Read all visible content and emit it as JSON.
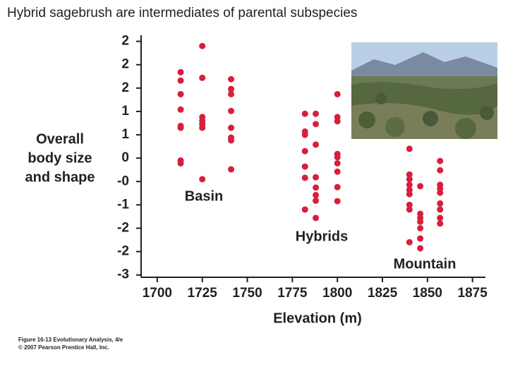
{
  "chart_data": {
    "type": "scatter",
    "title": "Hybrid sagebrush are intermediates of parental subspecies",
    "y_label": [
      "Overall",
      "body size",
      "and shape"
    ],
    "x_label": "Elevation (m)",
    "annotations": [
      "Basin",
      "Hybrids",
      "Mountain"
    ],
    "credit": [
      "Figure 16-13 Evolutionary Analysis, 4/e",
      "© 2007 Pearson Prentice Hall, Inc."
    ],
    "color": "#d81e3c",
    "x": [
      1713,
      1713,
      1713,
      1713,
      1713,
      1713,
      1713,
      1713,
      1725,
      1725,
      1725,
      1725,
      1725,
      1725,
      1725,
      1741,
      1741,
      1741,
      1741,
      1741,
      1741,
      1741,
      1741,
      1782,
      1782,
      1782,
      1782,
      1782,
      1782,
      1782,
      1788,
      1788,
      1788,
      1788,
      1788,
      1788,
      1788,
      1788,
      1800,
      1800,
      1800,
      1800,
      1800,
      1800,
      1800,
      1800,
      1800,
      1840,
      1840,
      1840,
      1840,
      1840,
      1840,
      1840,
      1840,
      1840,
      1846,
      1846,
      1846,
      1846,
      1846,
      1846,
      1846,
      1857,
      1857,
      1857,
      1857,
      1857,
      1857,
      1857,
      1857,
      1857
    ],
    "values": [
      1.84,
      1.66,
      1.37,
      1.04,
      0.69,
      0.65,
      -0.05,
      -0.11,
      2.4,
      1.72,
      0.88,
      0.8,
      0.73,
      0.65,
      -0.45,
      1.69,
      1.48,
      1.37,
      1.01,
      0.65,
      0.44,
      0.38,
      -0.24,
      0.95,
      0.57,
      0.5,
      0.15,
      -0.18,
      -0.42,
      -1.1,
      0.95,
      0.73,
      0.29,
      -0.41,
      -0.63,
      -0.79,
      -0.91,
      -1.28,
      1.37,
      0.88,
      0.79,
      0.09,
      0.02,
      -0.11,
      -0.29,
      -0.62,
      -0.92,
      0.2,
      -0.35,
      -0.45,
      -0.57,
      -0.68,
      -0.77,
      -1.0,
      -1.1,
      -1.8,
      -0.6,
      -1.19,
      -1.28,
      -1.36,
      -1.5,
      -1.72,
      -1.93,
      -0.06,
      -0.26,
      -0.57,
      -0.65,
      -0.74,
      -0.97,
      -1.1,
      -1.28,
      -1.4
    ],
    "xlim": [
      1693,
      1881
    ],
    "xticks": [
      1700,
      1725,
      1750,
      1775,
      1800,
      1825,
      1850,
      1875
    ],
    "ylim": [
      -2.55,
      2.6
    ],
    "yticks": [
      {
        "value": 2.5,
        "label": "2"
      },
      {
        "value": 2,
        "label": "2"
      },
      {
        "value": 1.5,
        "label": "2"
      },
      {
        "value": 1,
        "label": "1"
      },
      {
        "value": 0.5,
        "label": "1"
      },
      {
        "value": 0,
        "label": "0"
      },
      {
        "value": -0.5,
        "label": "-0"
      },
      {
        "value": -1,
        "label": "-1"
      },
      {
        "value": -1.5,
        "label": "-2"
      },
      {
        "value": -2,
        "label": "-2"
      },
      {
        "value": -2.5,
        "label": "-3"
      }
    ]
  }
}
